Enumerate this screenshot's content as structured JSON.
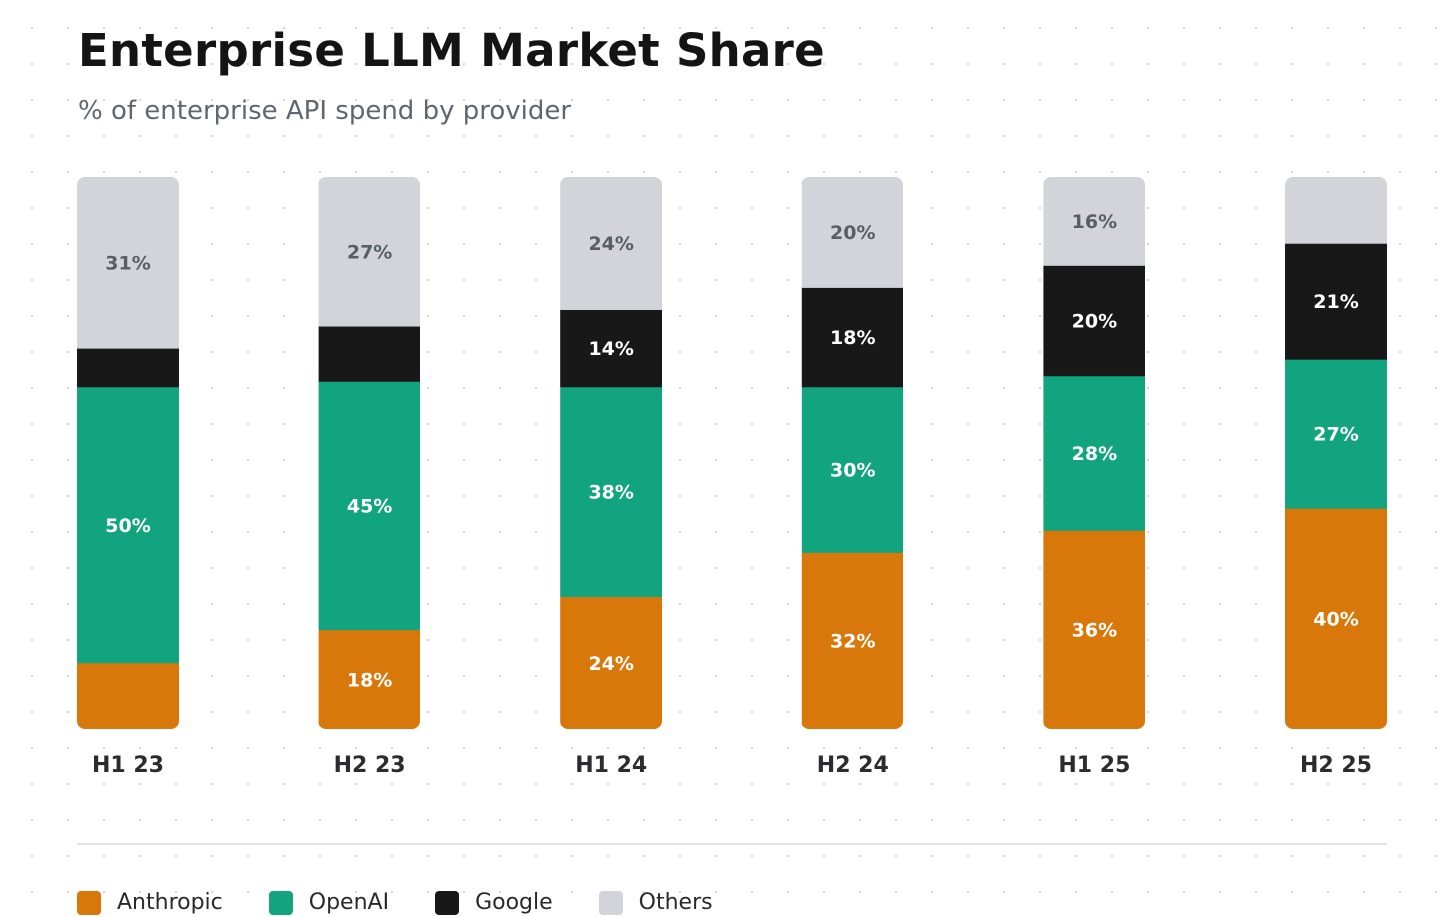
{
  "chart_data": {
    "type": "bar",
    "stacked": true,
    "title": "Enterprise LLM Market Share",
    "subtitle": "% of enterprise API spend by provider",
    "categories": [
      "H1 23",
      "H2 23",
      "H1 24",
      "H2 24",
      "H1 25",
      "H2 25"
    ],
    "series": [
      {
        "name": "Anthropic",
        "color": "#d9780a",
        "values": [
          12,
          18,
          24,
          32,
          36,
          40
        ],
        "labels": [
          "",
          "18%",
          "24%",
          "32%",
          "36%",
          "40%"
        ]
      },
      {
        "name": "OpenAI",
        "color": "#12a37f",
        "values": [
          50,
          45,
          38,
          30,
          28,
          27
        ],
        "labels": [
          "50%",
          "45%",
          "38%",
          "30%",
          "28%",
          "27%"
        ]
      },
      {
        "name": "Google",
        "color": "#181818",
        "values": [
          7,
          10,
          14,
          18,
          20,
          21
        ],
        "labels": [
          "",
          "",
          "14%",
          "18%",
          "20%",
          "21%"
        ]
      },
      {
        "name": "Others",
        "color": "#d3d4da",
        "values": [
          31,
          27,
          24,
          20,
          16,
          12
        ],
        "labels": [
          "31%",
          "27%",
          "24%",
          "20%",
          "16%",
          ""
        ]
      }
    ],
    "ylim": [
      0,
      100
    ],
    "legend_position": "bottom",
    "grid": false
  }
}
